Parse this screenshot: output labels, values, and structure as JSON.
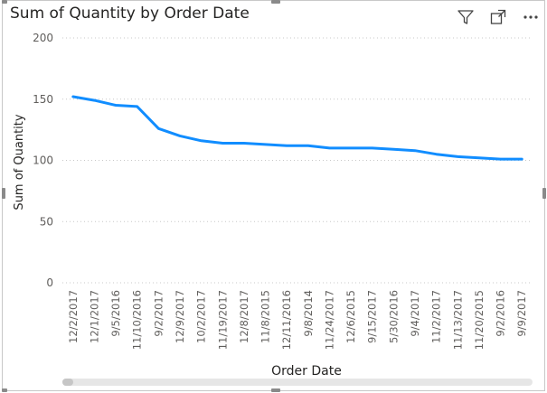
{
  "visual": {
    "title": "Sum of Quantity by Order Date",
    "icons": [
      "filter-icon",
      "focus-mode-icon",
      "more-options-icon"
    ]
  },
  "chart_data": {
    "type": "line",
    "title": "Sum of Quantity by Order Date",
    "xlabel": "Order Date",
    "ylabel": "Sum of Quantity",
    "ylim": [
      0,
      200
    ],
    "yticks": [
      0,
      50,
      100,
      150,
      200
    ],
    "grid": true,
    "line_color": "#118DFF",
    "categories": [
      "12/2/2017",
      "12/1/2017",
      "9/5/2016",
      "11/10/2016",
      "9/2/2017",
      "12/9/2017",
      "10/2/2017",
      "11/19/2017",
      "12/8/2017",
      "11/8/2015",
      "12/11/2016",
      "9/8/2014",
      "11/24/2017",
      "12/6/2015",
      "9/15/2017",
      "5/30/2016",
      "9/4/2017",
      "11/2/2017",
      "11/13/2017",
      "11/20/2015",
      "9/2/2016",
      "9/9/2017"
    ],
    "values": [
      152,
      149,
      145,
      144,
      126,
      120,
      116,
      114,
      114,
      113,
      112,
      112,
      110,
      110,
      110,
      109,
      108,
      105,
      103,
      102,
      101,
      101
    ]
  }
}
